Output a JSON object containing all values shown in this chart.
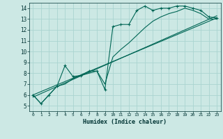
{
  "title": "",
  "xlabel": "Humidex (Indice chaleur)",
  "background_color": "#cce8e4",
  "grid_color": "#aad4d0",
  "line_color": "#006655",
  "xlim": [
    -0.5,
    23.5
  ],
  "ylim": [
    4.5,
    14.5
  ],
  "xticks": [
    0,
    1,
    2,
    3,
    4,
    5,
    6,
    7,
    8,
    9,
    10,
    11,
    12,
    13,
    14,
    15,
    16,
    17,
    18,
    19,
    20,
    21,
    22,
    23
  ],
  "yticks": [
    5,
    6,
    7,
    8,
    9,
    10,
    11,
    12,
    13,
    14
  ],
  "series1_x": [
    0,
    1,
    2,
    3,
    4,
    5,
    6,
    7,
    8,
    9,
    10,
    11,
    12,
    13,
    14,
    15,
    16,
    17,
    18,
    19,
    20,
    21,
    22,
    23
  ],
  "series1_y": [
    6.0,
    5.2,
    6.0,
    6.8,
    8.7,
    7.7,
    7.8,
    8.2,
    8.2,
    6.5,
    12.3,
    12.5,
    12.5,
    13.8,
    14.2,
    13.8,
    14.0,
    14.0,
    14.2,
    14.2,
    14.0,
    13.8,
    13.2,
    13.1
  ],
  "series2_x": [
    0,
    1,
    2,
    3,
    4,
    5,
    6,
    7,
    8,
    9,
    10,
    11,
    12,
    13,
    14,
    15,
    16,
    17,
    18,
    19,
    20,
    21,
    22,
    23
  ],
  "series2_y": [
    6.0,
    5.2,
    6.0,
    6.8,
    7.0,
    7.5,
    7.8,
    8.0,
    8.2,
    7.0,
    9.5,
    10.2,
    10.8,
    11.5,
    12.2,
    12.8,
    13.2,
    13.5,
    13.7,
    14.0,
    13.8,
    13.5,
    13.0,
    13.0
  ],
  "series3_x": [
    0,
    23
  ],
  "series3_y": [
    6.0,
    13.1
  ],
  "series4_x": [
    0,
    23
  ],
  "series4_y": [
    5.8,
    13.3
  ]
}
